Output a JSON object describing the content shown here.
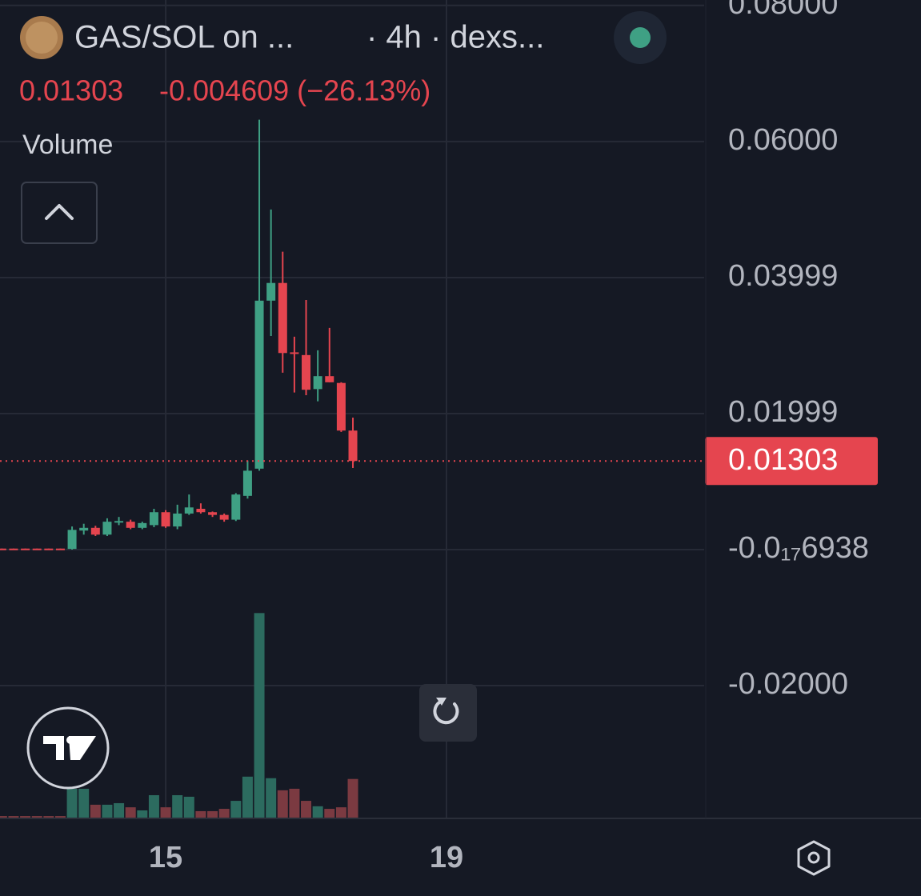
{
  "chart_data": {
    "type": "candlestick",
    "title": "GAS/SOL on ...",
    "interval_source": "· 4h · dexs...",
    "change": "-0.004609 (−26.13%)",
    "volume_label": "Volume",
    "last_price": 0.01303,
    "x": [
      12.6667,
      12.8333,
      13,
      13.1667,
      13.3333,
      13.5,
      13.6667,
      13.8333,
      14,
      14.1667,
      14.3333,
      14.5,
      14.6667,
      14.8333,
      15,
      15.1667,
      15.3333,
      15.5,
      15.6667,
      15.8333,
      16,
      16.1667,
      16.3333,
      16.5,
      16.6667,
      16.8333,
      17,
      17.1667,
      17.3333,
      17.5,
      17.6667
    ],
    "open": [
      0.00015,
      0.00015,
      0.00015,
      0.00015,
      0.00015,
      0.00015,
      0.0001,
      0.0028,
      0.0032,
      0.0022,
      0.004,
      0.0041,
      0.0032,
      0.0036,
      0.0055,
      0.0034,
      0.0053,
      0.006,
      0.0055,
      0.0051,
      0.0044,
      0.0079,
      0.0119,
      0.0366,
      0.0392,
      0.029,
      0.0286,
      0.0236,
      0.0255,
      0.0245,
      0.0175
    ],
    "high": [
      0.00015,
      0.00015,
      0.00015,
      0.00015,
      0.00015,
      0.00015,
      0.0034,
      0.0038,
      0.0035,
      0.0046,
      0.0048,
      0.0044,
      0.0041,
      0.006,
      0.0058,
      0.0066,
      0.0081,
      0.0068,
      0.0056,
      0.0053,
      0.0083,
      0.0131,
      0.0632,
      0.05,
      0.0438,
      0.0313,
      0.0367,
      0.0293,
      0.0326,
      0.0246,
      0.0194
    ],
    "low": [
      0.0001,
      0.0001,
      0.0001,
      0.0001,
      0.0001,
      0.0001,
      0.0,
      0.0022,
      0.002,
      0.002,
      0.0036,
      0.003,
      0.003,
      0.0033,
      0.0032,
      0.003,
      0.0051,
      0.0053,
      0.0048,
      0.0041,
      0.0042,
      0.0075,
      0.0116,
      0.0314,
      0.026,
      0.0231,
      0.0227,
      0.0218,
      0.0246,
      0.0173,
      0.012
    ],
    "close": [
      0.0001,
      0.0001,
      0.0001,
      0.0001,
      0.0001,
      0.0001,
      0.0029,
      0.0032,
      0.0022,
      0.0041,
      0.0042,
      0.0032,
      0.0039,
      0.0055,
      0.0034,
      0.0053,
      0.0062,
      0.0055,
      0.0051,
      0.0044,
      0.0081,
      0.0116,
      0.0366,
      0.0392,
      0.0289,
      0.0288,
      0.0235,
      0.0255,
      0.0246,
      0.0175,
      0.01303
    ],
    "volume": [
      0.6,
      0.6,
      0.6,
      0.6,
      0.6,
      0.6,
      11.2,
      11.2,
      5,
      5,
      5.6,
      4,
      2.8,
      8.7,
      4,
      8.7,
      8.1,
      2.5,
      2.5,
      3.4,
      6.5,
      15.9,
      79.4,
      15.3,
      10.6,
      11.2,
      6.5,
      4.4,
      3.4,
      4,
      15
    ],
    "volume_lim": [
      0,
      100
    ],
    "xlim": [
      12.64,
      22.67
    ],
    "xticks": [
      15,
      19
    ],
    "ylim": [
      -0.0394,
      0.0808
    ],
    "yticks": [
      {
        "value": 0.08,
        "label": "0.08000"
      },
      {
        "value": 0.06,
        "label": "0.06000"
      },
      {
        "value": 0.03999,
        "label": "0.03999"
      },
      {
        "value": 0.01999,
        "label": "0.01999"
      },
      {
        "value": -6.938e-18,
        "label": "-0.0₁₇6938"
      },
      {
        "value": -0.02,
        "label": "-0.02000"
      }
    ],
    "grid": true,
    "up_color": "#3fa084",
    "down_color": "#e5454f",
    "volume_up_color": "#2c6b5f",
    "volume_down_color": "#7b3a41"
  }
}
